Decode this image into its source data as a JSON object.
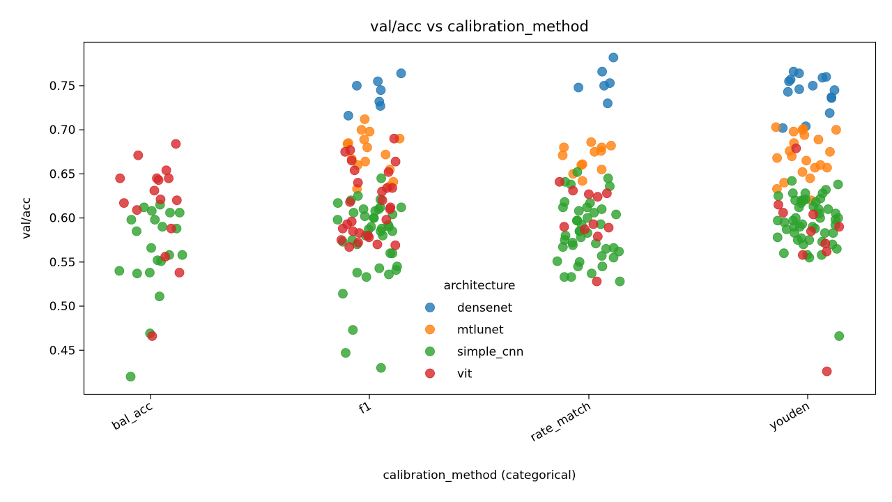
{
  "chart_data": {
    "type": "scatter",
    "title": "val/acc vs calibration_method",
    "xlabel": "calibration_method (categorical)",
    "ylabel": "val/acc",
    "categories": [
      "bal_acc",
      "f1",
      "rate_match",
      "youden"
    ],
    "ylim": [
      0.4,
      0.8
    ],
    "yticks": [
      0.45,
      0.5,
      0.55,
      0.6,
      0.65,
      0.7,
      0.75
    ],
    "grid": false,
    "legend": {
      "title": "architecture",
      "placement": "lower-center"
    },
    "series": [
      {
        "name": "densenet",
        "color": "#1f77b4",
        "points": [
          [
            "f1",
            0.732
          ],
          [
            "f1",
            0.75
          ],
          [
            "f1",
            0.755
          ],
          [
            "f1",
            0.764
          ],
          [
            "f1",
            0.745
          ],
          [
            "f1",
            0.727
          ],
          [
            "f1",
            0.716
          ],
          [
            "rate_match",
            0.782
          ],
          [
            "rate_match",
            0.766
          ],
          [
            "rate_match",
            0.753
          ],
          [
            "rate_match",
            0.75
          ],
          [
            "rate_match",
            0.748
          ],
          [
            "rate_match",
            0.73
          ],
          [
            "youden",
            0.743
          ],
          [
            "youden",
            0.75
          ],
          [
            "youden",
            0.757
          ],
          [
            "youden",
            0.755
          ],
          [
            "youden",
            0.76
          ],
          [
            "youden",
            0.736
          ],
          [
            "youden",
            0.719
          ],
          [
            "youden",
            0.702
          ],
          [
            "youden",
            0.704
          ],
          [
            "youden",
            0.759
          ],
          [
            "youden",
            0.764
          ],
          [
            "youden",
            0.766
          ],
          [
            "youden",
            0.746
          ],
          [
            "youden",
            0.745
          ],
          [
            "youden",
            0.737
          ]
        ]
      },
      {
        "name": "mtlunet",
        "color": "#ff7f0e",
        "points": [
          [
            "f1",
            0.689
          ],
          [
            "f1",
            0.712
          ],
          [
            "f1",
            0.655
          ],
          [
            "f1",
            0.685
          ],
          [
            "f1",
            0.684
          ],
          [
            "f1",
            0.66
          ],
          [
            "f1",
            0.7
          ],
          [
            "f1",
            0.698
          ],
          [
            "f1",
            0.69
          ],
          [
            "f1",
            0.68
          ],
          [
            "f1",
            0.672
          ],
          [
            "f1",
            0.667
          ],
          [
            "f1",
            0.664
          ],
          [
            "f1",
            0.641
          ],
          [
            "f1",
            0.636
          ],
          [
            "f1",
            0.633
          ],
          [
            "rate_match",
            0.686
          ],
          [
            "rate_match",
            0.682
          ],
          [
            "rate_match",
            0.68
          ],
          [
            "rate_match",
            0.68
          ],
          [
            "rate_match",
            0.675
          ],
          [
            "rate_match",
            0.671
          ],
          [
            "rate_match",
            0.676
          ],
          [
            "rate_match",
            0.661
          ],
          [
            "rate_match",
            0.655
          ],
          [
            "rate_match",
            0.65
          ],
          [
            "rate_match",
            0.66
          ],
          [
            "rate_match",
            0.642
          ],
          [
            "youden",
            0.652
          ],
          [
            "youden",
            0.7
          ],
          [
            "youden",
            0.701
          ],
          [
            "youden",
            0.668
          ],
          [
            "youden",
            0.67
          ],
          [
            "youden",
            0.64
          ],
          [
            "youden",
            0.689
          ],
          [
            "youden",
            0.703
          ],
          [
            "youden",
            0.685
          ],
          [
            "youden",
            0.698
          ],
          [
            "youden",
            0.7
          ],
          [
            "youden",
            0.676
          ],
          [
            "youden",
            0.657
          ],
          [
            "youden",
            0.665
          ],
          [
            "youden",
            0.645
          ],
          [
            "youden",
            0.675
          ],
          [
            "youden",
            0.657
          ],
          [
            "youden",
            0.66
          ],
          [
            "youden",
            0.633
          ],
          [
            "youden",
            0.62
          ],
          [
            "youden",
            0.694
          ]
        ]
      },
      {
        "name": "simple_cnn",
        "color": "#2ca02c",
        "points": [
          [
            "bal_acc",
            0.566
          ],
          [
            "bal_acc",
            0.551
          ],
          [
            "bal_acc",
            0.537
          ],
          [
            "bal_acc",
            0.538
          ],
          [
            "bal_acc",
            0.606
          ],
          [
            "bal_acc",
            0.598
          ],
          [
            "bal_acc",
            0.608
          ],
          [
            "bal_acc",
            0.588
          ],
          [
            "bal_acc",
            0.552
          ],
          [
            "bal_acc",
            0.54
          ],
          [
            "bal_acc",
            0.511
          ],
          [
            "bal_acc",
            0.615
          ],
          [
            "bal_acc",
            0.612
          ],
          [
            "bal_acc",
            0.606
          ],
          [
            "bal_acc",
            0.59
          ],
          [
            "bal_acc",
            0.585
          ],
          [
            "bal_acc",
            0.558
          ],
          [
            "bal_acc",
            0.558
          ],
          [
            "bal_acc",
            0.469
          ],
          [
            "bal_acc",
            0.42
          ],
          [
            "bal_acc",
            0.598
          ],
          [
            "f1",
            0.621
          ],
          [
            "f1",
            0.604
          ],
          [
            "f1",
            0.6
          ],
          [
            "f1",
            0.588
          ],
          [
            "f1",
            0.573
          ],
          [
            "f1",
            0.545
          ],
          [
            "f1",
            0.514
          ],
          [
            "f1",
            0.473
          ],
          [
            "f1",
            0.533
          ],
          [
            "f1",
            0.536
          ],
          [
            "f1",
            0.538
          ],
          [
            "f1",
            0.56
          ],
          [
            "f1",
            0.575
          ],
          [
            "f1",
            0.59
          ],
          [
            "f1",
            0.61
          ],
          [
            "f1",
            0.602
          ],
          [
            "f1",
            0.617
          ],
          [
            "f1",
            0.625
          ],
          [
            "f1",
            0.58
          ],
          [
            "f1",
            0.56
          ],
          [
            "f1",
            0.592
          ],
          [
            "f1",
            0.612
          ],
          [
            "f1",
            0.608
          ],
          [
            "f1",
            0.585
          ],
          [
            "f1",
            0.57
          ],
          [
            "f1",
            0.598
          ],
          [
            "f1",
            0.606
          ],
          [
            "f1",
            0.59
          ],
          [
            "f1",
            0.61
          ],
          [
            "f1",
            0.645
          ],
          [
            "f1",
            0.612
          ],
          [
            "f1",
            0.587
          ],
          [
            "f1",
            0.543
          ],
          [
            "f1",
            0.541
          ],
          [
            "f1",
            0.43
          ],
          [
            "f1",
            0.447
          ],
          [
            "f1",
            0.6
          ],
          [
            "f1",
            0.62
          ],
          [
            "f1",
            0.585
          ],
          [
            "f1",
            0.58
          ],
          [
            "rate_match",
            0.597
          ],
          [
            "rate_match",
            0.593
          ],
          [
            "rate_match",
            0.585
          ],
          [
            "rate_match",
            0.578
          ],
          [
            "rate_match",
            0.572
          ],
          [
            "rate_match",
            0.545
          ],
          [
            "rate_match",
            0.533
          ],
          [
            "rate_match",
            0.537
          ],
          [
            "rate_match",
            0.562
          ],
          [
            "rate_match",
            0.61
          ],
          [
            "rate_match",
            0.617
          ],
          [
            "rate_match",
            0.636
          ],
          [
            "rate_match",
            0.645
          ],
          [
            "rate_match",
            0.652
          ],
          [
            "rate_match",
            0.6
          ],
          [
            "rate_match",
            0.583
          ],
          [
            "rate_match",
            0.58
          ],
          [
            "rate_match",
            0.566
          ],
          [
            "rate_match",
            0.608
          ],
          [
            "rate_match",
            0.551
          ],
          [
            "rate_match",
            0.571
          ],
          [
            "rate_match",
            0.592
          ],
          [
            "rate_match",
            0.612
          ],
          [
            "rate_match",
            0.641
          ],
          [
            "rate_match",
            0.618
          ],
          [
            "rate_match",
            0.575
          ],
          [
            "rate_match",
            0.565
          ],
          [
            "rate_match",
            0.545
          ],
          [
            "rate_match",
            0.557
          ],
          [
            "rate_match",
            0.585
          ],
          [
            "rate_match",
            0.638
          ],
          [
            "rate_match",
            0.612
          ],
          [
            "rate_match",
            0.604
          ],
          [
            "rate_match",
            0.597
          ],
          [
            "rate_match",
            0.567
          ],
          [
            "rate_match",
            0.555
          ],
          [
            "rate_match",
            0.55
          ],
          [
            "rate_match",
            0.528
          ],
          [
            "rate_match",
            0.533
          ],
          [
            "rate_match",
            0.569
          ],
          [
            "rate_match",
            0.606
          ],
          [
            "youden",
            0.638
          ],
          [
            "youden",
            0.642
          ],
          [
            "youden",
            0.628
          ],
          [
            "youden",
            0.62
          ],
          [
            "youden",
            0.61
          ],
          [
            "youden",
            0.59
          ],
          [
            "youden",
            0.575
          ],
          [
            "youden",
            0.573
          ],
          [
            "youden",
            0.555
          ],
          [
            "youden",
            0.6
          ],
          [
            "youden",
            0.605
          ],
          [
            "youden",
            0.597
          ],
          [
            "youden",
            0.595
          ],
          [
            "youden",
            0.583
          ],
          [
            "youden",
            0.578
          ],
          [
            "youden",
            0.56
          ],
          [
            "youden",
            0.558
          ],
          [
            "youden",
            0.628
          ],
          [
            "youden",
            0.612
          ],
          [
            "youden",
            0.622
          ],
          [
            "youden",
            0.618
          ],
          [
            "youden",
            0.59
          ],
          [
            "youden",
            0.575
          ],
          [
            "youden",
            0.57
          ],
          [
            "youden",
            0.62
          ],
          [
            "youden",
            0.613
          ],
          [
            "youden",
            0.6
          ],
          [
            "youden",
            0.598
          ],
          [
            "youden",
            0.592
          ],
          [
            "youden",
            0.588
          ],
          [
            "youden",
            0.577
          ],
          [
            "youden",
            0.57
          ],
          [
            "youden",
            0.628
          ],
          [
            "youden",
            0.625
          ],
          [
            "youden",
            0.62
          ],
          [
            "youden",
            0.617
          ],
          [
            "youden",
            0.605
          ],
          [
            "youden",
            0.6
          ],
          [
            "youden",
            0.597
          ],
          [
            "youden",
            0.593
          ],
          [
            "youden",
            0.59
          ],
          [
            "youden",
            0.587
          ],
          [
            "youden",
            0.583
          ],
          [
            "youden",
            0.583
          ],
          [
            "youden",
            0.565
          ],
          [
            "youden",
            0.558
          ],
          [
            "youden",
            0.466
          ],
          [
            "youden",
            0.632
          ],
          [
            "youden",
            0.621
          ],
          [
            "youden",
            0.61
          ]
        ]
      },
      {
        "name": "vit",
        "color": "#d62728",
        "points": [
          [
            "bal_acc",
            0.684
          ],
          [
            "bal_acc",
            0.671
          ],
          [
            "bal_acc",
            0.645
          ],
          [
            "bal_acc",
            0.645
          ],
          [
            "bal_acc",
            0.643
          ],
          [
            "bal_acc",
            0.631
          ],
          [
            "bal_acc",
            0.617
          ],
          [
            "bal_acc",
            0.62
          ],
          [
            "bal_acc",
            0.654
          ],
          [
            "bal_acc",
            0.645
          ],
          [
            "bal_acc",
            0.621
          ],
          [
            "bal_acc",
            0.609
          ],
          [
            "bal_acc",
            0.588
          ],
          [
            "bal_acc",
            0.556
          ],
          [
            "bal_acc",
            0.538
          ],
          [
            "bal_acc",
            0.466
          ],
          [
            "f1",
            0.69
          ],
          [
            "f1",
            0.677
          ],
          [
            "f1",
            0.675
          ],
          [
            "f1",
            0.665
          ],
          [
            "f1",
            0.664
          ],
          [
            "f1",
            0.652
          ],
          [
            "f1",
            0.654
          ],
          [
            "f1",
            0.64
          ],
          [
            "f1",
            0.634
          ],
          [
            "f1",
            0.634
          ],
          [
            "f1",
            0.63
          ],
          [
            "f1",
            0.62
          ],
          [
            "f1",
            0.618
          ],
          [
            "f1",
            0.612
          ],
          [
            "f1",
            0.61
          ],
          [
            "f1",
            0.598
          ],
          [
            "f1",
            0.596
          ],
          [
            "f1",
            0.593
          ],
          [
            "f1",
            0.588
          ],
          [
            "f1",
            0.585
          ],
          [
            "f1",
            0.583
          ],
          [
            "f1",
            0.58
          ],
          [
            "f1",
            0.578
          ],
          [
            "f1",
            0.575
          ],
          [
            "f1",
            0.572
          ],
          [
            "f1",
            0.57
          ],
          [
            "f1",
            0.569
          ],
          [
            "f1",
            0.567
          ],
          [
            "rate_match",
            0.641
          ],
          [
            "rate_match",
            0.631
          ],
          [
            "rate_match",
            0.628
          ],
          [
            "rate_match",
            0.627
          ],
          [
            "rate_match",
            0.624
          ],
          [
            "rate_match",
            0.593
          ],
          [
            "rate_match",
            0.59
          ],
          [
            "rate_match",
            0.589
          ],
          [
            "rate_match",
            0.587
          ],
          [
            "rate_match",
            0.579
          ],
          [
            "rate_match",
            0.528
          ],
          [
            "youden",
            0.679
          ],
          [
            "youden",
            0.606
          ],
          [
            "youden",
            0.604
          ],
          [
            "youden",
            0.585
          ],
          [
            "youden",
            0.571
          ],
          [
            "youden",
            0.558
          ],
          [
            "youden",
            0.615
          ],
          [
            "youden",
            0.59
          ],
          [
            "youden",
            0.562
          ],
          [
            "youden",
            0.426
          ]
        ]
      }
    ]
  }
}
